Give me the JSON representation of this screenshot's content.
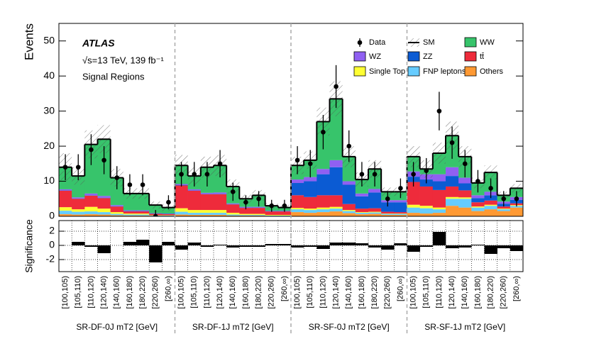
{
  "chart_data": {
    "type": "bar",
    "stacked": true,
    "experiment": "ATLAS",
    "energy_label": "√s=13 TeV, 139 fb⁻¹",
    "subtitle": "Signal Regions",
    "y_label": "Events",
    "ylim": [
      0,
      55
    ],
    "yticks": [
      0,
      10,
      20,
      30,
      40,
      50
    ],
    "regions": [
      "SR-DF-0J mT2 [GeV]",
      "SR-DF-1J mT2 [GeV]",
      "SR-SF-0J mT2 [GeV]",
      "SR-SF-1J mT2 [GeV]"
    ],
    "categories": [
      "[100,105)",
      "[105,110)",
      "[110,120)",
      "[120,140)",
      "[140,160)",
      "[160,180)",
      "[180,220)",
      "[220,260)",
      "[260,∞)",
      "[100,105)",
      "[105,110)",
      "[110,120)",
      "[120,140)",
      "[140,160)",
      "[160,180)",
      "[180,220)",
      "[220,260)",
      "[260,∞)",
      "[100,105)",
      "[105,110)",
      "[110,120)",
      "[120,140)",
      "[140,160)",
      "[160,180)",
      "[180,220)",
      "[220,260)",
      "[260,∞)",
      "[100,105)",
      "[105,110)",
      "[110,120)",
      "[120,140)",
      "[140,160)",
      "[160,180)",
      "[180,220)",
      "[220,260)",
      "[260,∞)"
    ],
    "series": [
      {
        "name": "WW",
        "color": "#37c46b",
        "values": [
          6.3,
          6.1,
          14,
          16.2,
          7.8,
          4.8,
          4.8,
          2.3,
          1.7,
          5.3,
          3.8,
          7.3,
          7.7,
          4.8,
          2.3,
          3.3,
          1.4,
          0.9,
          4,
          4.8,
          13.5,
          17.5,
          7,
          4,
          5.7,
          2.4,
          2.4,
          4.2,
          1.5,
          6,
          9,
          6,
          3.5,
          5.5,
          1.8,
          2.5
        ]
      },
      {
        "name": "WZ",
        "color": "#9060f2",
        "values": [
          0.3,
          0.3,
          0.5,
          0.5,
          0.3,
          0.2,
          0.2,
          0.1,
          0.1,
          0.3,
          0.3,
          0.3,
          0.4,
          0.2,
          0.2,
          0.2,
          0.1,
          0.1,
          1,
          1.2,
          1.5,
          2,
          1,
          0.8,
          1,
          0.6,
          0.6,
          1.5,
          1.5,
          2,
          2.5,
          1.6,
          0.8,
          1,
          0.6,
          0.8
        ]
      },
      {
        "name": "ZZ",
        "color": "#0b5bd3",
        "values": [
          0.1,
          0.1,
          0.1,
          0.1,
          0.1,
          0.1,
          0.1,
          0.1,
          0.1,
          0.1,
          0.1,
          0.1,
          0.1,
          0.1,
          0.1,
          0.1,
          0.1,
          0.1,
          3.5,
          4.5,
          6,
          8,
          5.5,
          3.5,
          4.5,
          2.7,
          2.8,
          1.5,
          2,
          2.5,
          3,
          2,
          1.2,
          1.5,
          0.8,
          1
        ]
      },
      {
        "name": "tt̄",
        "color": "#ee2b3b",
        "values": [
          4.7,
          3,
          3.2,
          3,
          1.6,
          0.6,
          0.6,
          0.4,
          0.3,
          6.5,
          5.5,
          4.5,
          4.5,
          2.4,
          1.7,
          1.7,
          1,
          1,
          3.6,
          3.3,
          3.5,
          3.3,
          1.7,
          1,
          1,
          0.5,
          0.4,
          6.5,
          5.5,
          5,
          3,
          2,
          1.2,
          1.2,
          0.6,
          0.5
        ]
      },
      {
        "name": "Single Top",
        "color": "#ffff33",
        "values": [
          1,
          0.7,
          1.3,
          1,
          0.5,
          0.3,
          0.3,
          0.1,
          0.1,
          1,
          0.8,
          0.8,
          0.8,
          0.5,
          0.3,
          0.3,
          0.2,
          0.2,
          0.4,
          0.4,
          0.5,
          0.5,
          0.3,
          0.2,
          0.2,
          0.1,
          0.1,
          0.8,
          0.7,
          0.5,
          0.5,
          0.4,
          0.3,
          0.3,
          0.2,
          0.2
        ]
      },
      {
        "name": "FNP leptons",
        "color": "#66ccff",
        "values": [
          1,
          0.8,
          0.8,
          0.7,
          0.4,
          0.3,
          0.3,
          0.1,
          0.1,
          0.8,
          0.6,
          0.6,
          0.6,
          0.3,
          0.2,
          0.2,
          0.1,
          0.1,
          0.8,
          0.8,
          0.8,
          0.8,
          0.6,
          0.4,
          0.4,
          0.3,
          0.3,
          1.5,
          1.5,
          1,
          2,
          2.5,
          1,
          1,
          0.5,
          0.5
        ]
      },
      {
        "name": "Others",
        "color": "#ff9933",
        "values": [
          0.6,
          0.5,
          0.6,
          0.5,
          0.3,
          0.2,
          0.2,
          0.1,
          0.1,
          0.5,
          0.4,
          0.4,
          0.4,
          0.2,
          0.2,
          0.2,
          0.1,
          0.1,
          1.2,
          1,
          1.2,
          1.4,
          0.9,
          0.6,
          0.7,
          0.4,
          0.4,
          1,
          0.8,
          1,
          3,
          2.5,
          1.5,
          2,
          1.5,
          2.5
        ]
      }
    ],
    "sm": {
      "name": "SM",
      "uncertainty": [
        4,
        2.5,
        4,
        4,
        2.5,
        1.5,
        1.5,
        1,
        1,
        3,
        2.5,
        3,
        3,
        2,
        1.2,
        1.5,
        0.8,
        0.8,
        2.5,
        2.5,
        4,
        5,
        3,
        2,
        2.5,
        1.2,
        1.2,
        3,
        2.5,
        3,
        4,
        3,
        1.5,
        2,
        1,
        1.2
      ]
    },
    "data": {
      "name": "Data",
      "values": [
        14,
        14,
        19,
        16,
        11,
        9,
        9,
        0,
        4,
        12,
        12,
        12,
        15,
        7,
        4,
        5,
        3,
        3,
        16,
        15,
        24,
        37,
        20,
        12,
        12,
        5,
        8,
        12,
        13,
        30,
        21,
        15,
        10,
        8,
        5,
        5
      ],
      "errors": [
        3.7,
        3.7,
        4.4,
        4,
        3.3,
        3,
        3,
        1.8,
        2,
        3.5,
        3.5,
        3.5,
        3.9,
        2.6,
        2,
        2.2,
        1.7,
        1.7,
        4,
        3.9,
        4.9,
        6.1,
        4.5,
        3.5,
        3.5,
        2.2,
        2.8,
        3.5,
        3.6,
        5.5,
        4.6,
        3.9,
        3.2,
        2.8,
        2.2,
        2.2
      ]
    },
    "significance": {
      "y_label": "Significance",
      "ylim": [
        -3.7,
        3.5
      ],
      "yticks": [
        -2,
        0,
        2
      ],
      "grid": true,
      "values": [
        0,
        0.5,
        -0.2,
        -1.1,
        0,
        0.5,
        0.8,
        -2.4,
        0.5,
        -0.6,
        0.4,
        -0.2,
        0.1,
        -0.3,
        -0.2,
        -0.2,
        0.2,
        0.2,
        -0.3,
        -0.2,
        -0.5,
        0.4,
        0.4,
        0.3,
        -0.3,
        -0.6,
        0.3,
        -0.9,
        -0.2,
        1.9,
        -0.4,
        -0.3,
        0.1,
        -1.2,
        -0.4,
        -0.8
      ]
    }
  }
}
